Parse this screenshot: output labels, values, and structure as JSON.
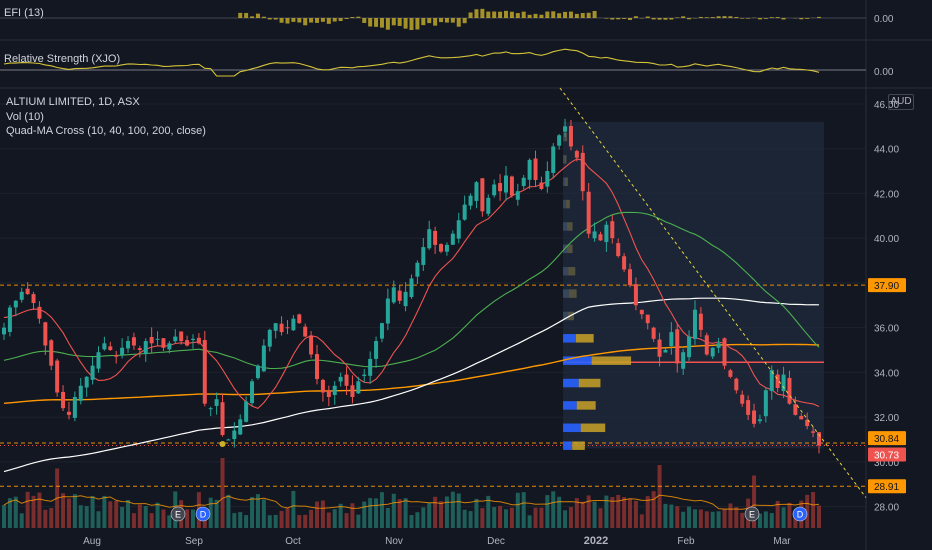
{
  "header": {
    "symbol_line": "ALTIUM LIMITED, 1D, ASX",
    "currency": "AUD",
    "indicators": [
      "Vol (10)",
      "Quad-MA Cross (10, 40, 100, 200, close)"
    ]
  },
  "panes": {
    "top_indicator": {
      "label": "EFI (13)",
      "value_label": "0.00"
    },
    "relative_strength": {
      "label": "Relative Strength (XJO)",
      "value_label": "0.00"
    }
  },
  "colors": {
    "background": "#131722",
    "up": "#26a69a",
    "down": "#ef5350",
    "ma10": "#ef5350",
    "ma40": "#4caf50",
    "ma100": "#ffffff",
    "ma200": "#ff9800",
    "level_line": "#ff9800",
    "efi": "#c9b22a",
    "rs": "#d4c33a",
    "trendline": "#e8d33a",
    "current_price": "#ef5350"
  },
  "chart_data": {
    "type": "candlestick",
    "instrument": "ALTIUM LIMITED",
    "timeframe": "1D",
    "exchange": "ASX",
    "ylim": [
      27.4,
      46.4
    ],
    "y_ticks": [
      "46.00",
      "44.00",
      "42.00",
      "40.00",
      "38.00",
      "36.00",
      "34.00",
      "32.00",
      "30.00",
      "28.00"
    ],
    "x_ticks": [
      "Aug",
      "Sep",
      "Oct",
      "Nov",
      "Dec",
      "2022",
      "Feb",
      "Mar"
    ],
    "price_labels": {
      "level_high": "37.90",
      "level_low": "28.91",
      "support": "30.84",
      "last": "30.73"
    },
    "levels": [
      37.9,
      28.91,
      30.84
    ],
    "last_price": 30.73,
    "poc_price": 34.45,
    "closes": [
      36.0,
      36.9,
      37.2,
      37.6,
      37.5,
      37.1,
      36.4,
      35.2,
      34.3,
      33.1,
      32.4,
      32.1,
      32.9,
      33.4,
      33.8,
      34.3,
      34.9,
      35.3,
      35.0,
      34.7,
      35.1,
      35.4,
      35.2,
      35.0,
      35.4,
      35.3,
      35.5,
      35.1,
      35.3,
      35.6,
      35.4,
      35.2,
      35.5,
      35.3,
      32.6,
      32.4,
      32.8,
      31.2,
      31.0,
      31.4,
      31.9,
      32.7,
      33.6,
      34.3,
      35.2,
      35.9,
      36.2,
      35.8,
      36.0,
      36.4,
      36.2,
      35.6,
      34.8,
      33.7,
      33.1,
      32.9,
      33.4,
      33.8,
      33.4,
      32.9,
      33.6,
      33.9,
      34.6,
      35.4,
      36.2,
      37.3,
      37.8,
      37.2,
      37.6,
      38.2,
      38.9,
      39.6,
      40.4,
      39.7,
      39.4,
      39.7,
      40.2,
      40.8,
      41.5,
      41.9,
      42.5,
      41.2,
      41.8,
      42.4,
      42.1,
      42.8,
      41.9,
      42.1,
      42.7,
      43.5,
      42.6,
      42.2,
      43.0,
      44.1,
      44.6,
      45.0,
      44.1,
      43.6,
      42.1,
      40.2,
      40.3,
      39.9,
      40.6,
      40.0,
      39.2,
      38.6,
      37.9,
      37.0,
      36.6,
      36.2,
      35.5,
      34.7,
      35.0,
      35.8,
      34.4,
      34.9,
      35.6,
      36.8,
      35.9,
      34.8,
      35.1,
      35.3,
      34.3,
      33.8,
      33.2,
      32.6,
      32.1,
      31.7,
      31.9,
      33.2,
      34.1,
      33.3,
      33.9,
      32.6,
      32.1,
      31.9,
      31.6,
      31.3,
      30.73
    ],
    "volume_profile": [
      {
        "price": 44.5,
        "vol": 0.06
      },
      {
        "price": 43.5,
        "vol": 0.05
      },
      {
        "price": 42.5,
        "vol": 0.07
      },
      {
        "price": 41.5,
        "vol": 0.1
      },
      {
        "price": 40.5,
        "vol": 0.14
      },
      {
        "price": 39.5,
        "vol": 0.14
      },
      {
        "price": 38.5,
        "vol": 0.18
      },
      {
        "price": 37.5,
        "vol": 0.2
      },
      {
        "price": 36.5,
        "vol": 0.16
      },
      {
        "price": 35.5,
        "vol": 0.45
      },
      {
        "price": 34.5,
        "vol": 1.0
      },
      {
        "price": 33.5,
        "vol": 0.55
      },
      {
        "price": 32.5,
        "vol": 0.48
      },
      {
        "price": 31.5,
        "vol": 0.62
      },
      {
        "price": 30.7,
        "vol": 0.32
      }
    ],
    "events": [
      {
        "label": "E"
      },
      {
        "label": "D"
      },
      {
        "label": "E"
      },
      {
        "label": "D"
      }
    ]
  }
}
